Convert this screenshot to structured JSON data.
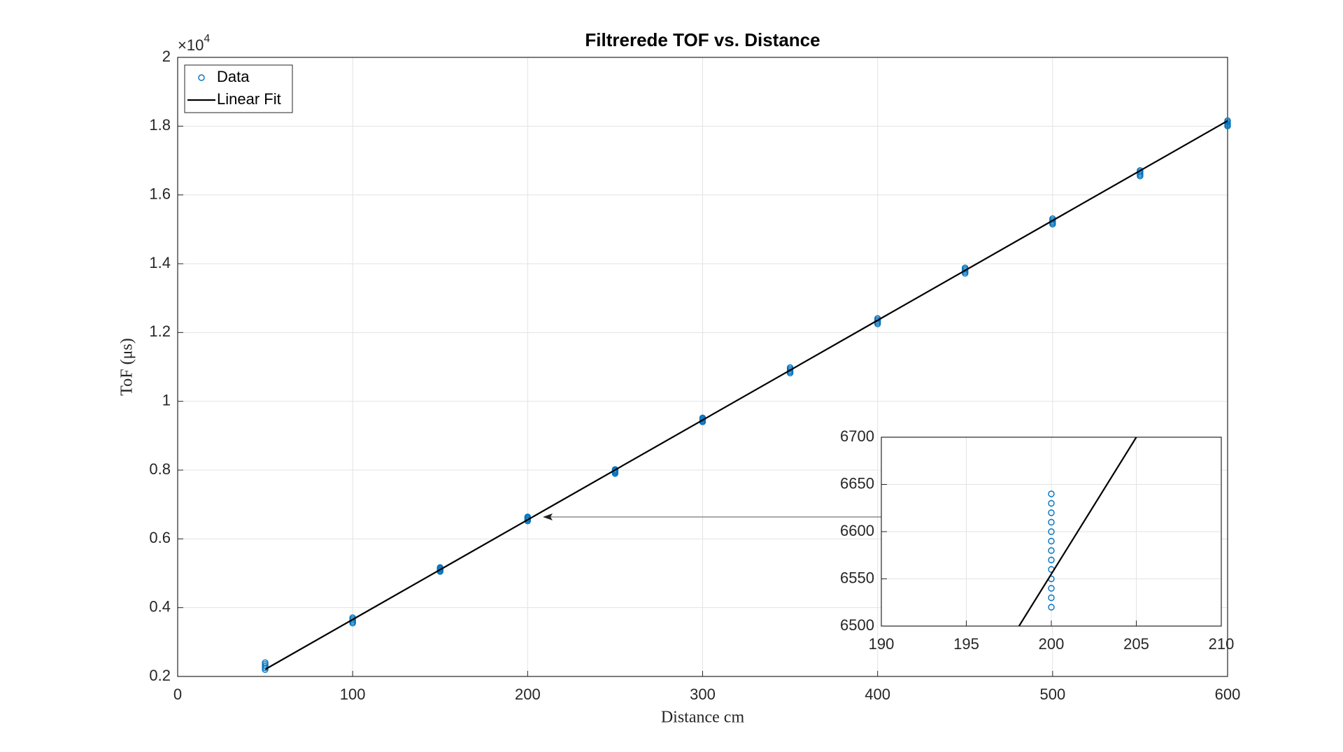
{
  "chart_data": [
    {
      "type": "scatter",
      "title": "Filtrerede TOF vs. Distance",
      "xlabel": "Distance cm",
      "ylabel": "ToF (μs)",
      "y_multiplier": {
        "base": "×10",
        "exponent": "4"
      },
      "xlim": [
        0,
        600
      ],
      "xticks": [
        0,
        100,
        200,
        300,
        400,
        500,
        600
      ],
      "ylim": [
        2000,
        20000
      ],
      "yticks": [
        {
          "value": 2000,
          "label": "0.2"
        },
        {
          "value": 4000,
          "label": "0.4"
        },
        {
          "value": 6000,
          "label": "0.6"
        },
        {
          "value": 8000,
          "label": "0.8"
        },
        {
          "value": 10000,
          "label": "1"
        },
        {
          "value": 12000,
          "label": "1.2"
        },
        {
          "value": 14000,
          "label": "1.4"
        },
        {
          "value": 16000,
          "label": "1.6"
        },
        {
          "value": 18000,
          "label": "1.8"
        },
        {
          "value": 20000,
          "label": "2"
        }
      ],
      "grid": true,
      "legend": "upper left",
      "series": [
        {
          "name": "Data",
          "type": "scatter",
          "color": "#0072bd",
          "x": [
            50,
            50,
            50,
            50,
            50,
            100,
            100,
            100,
            100,
            100,
            150,
            150,
            150,
            150,
            150,
            200,
            200,
            200,
            200,
            200,
            250,
            250,
            250,
            250,
            250,
            300,
            300,
            300,
            300,
            300,
            350,
            350,
            350,
            350,
            350,
            400,
            400,
            400,
            400,
            400,
            450,
            450,
            450,
            450,
            450,
            500,
            500,
            500,
            500,
            500,
            550,
            550,
            550,
            550,
            550,
            600,
            600,
            600,
            600,
            600
          ],
          "values": [
            2200,
            2250,
            2300,
            2350,
            2400,
            3550,
            3590,
            3630,
            3670,
            3710,
            5050,
            5080,
            5110,
            5140,
            5170,
            6520,
            6550,
            6580,
            6610,
            6640,
            7900,
            7930,
            7960,
            7990,
            8020,
            9400,
            9430,
            9460,
            9490,
            9520,
            10820,
            10860,
            10900,
            10940,
            10980,
            12250,
            12290,
            12330,
            12370,
            12410,
            13720,
            13760,
            13800,
            13840,
            13880,
            15150,
            15190,
            15230,
            15270,
            15310,
            16550,
            16590,
            16630,
            16670,
            16710,
            18000,
            18040,
            18080,
            18120,
            18160
          ]
        },
        {
          "name": "Linear Fit",
          "type": "line",
          "color": "#000000",
          "x": [
            50,
            600
          ],
          "values": [
            2205,
            18155
          ]
        }
      ]
    },
    {
      "type": "scatter",
      "xlim": [
        190,
        210
      ],
      "xticks": [
        190,
        195,
        200,
        205,
        210
      ],
      "ylim": [
        6500,
        6700
      ],
      "yticks": [
        6500,
        6550,
        6600,
        6650,
        6700
      ],
      "grid": true,
      "series": [
        {
          "type": "scatter",
          "color": "#0072bd",
          "x": [
            200,
            200,
            200,
            200,
            200,
            200,
            200,
            200,
            200,
            200,
            200,
            200,
            200
          ],
          "values": [
            6520,
            6530,
            6540,
            6550,
            6560,
            6570,
            6580,
            6590,
            6600,
            6610,
            6620,
            6630,
            6640
          ]
        },
        {
          "type": "line",
          "color": "#000000",
          "x": [
            198.1,
            205.0
          ],
          "values": [
            6500,
            6700
          ]
        }
      ]
    }
  ]
}
